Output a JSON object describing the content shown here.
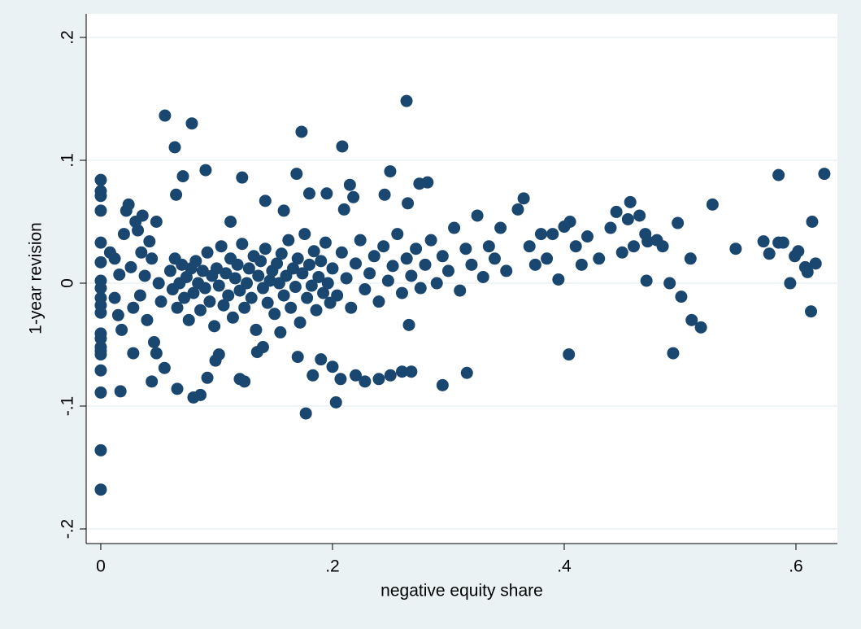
{
  "chart_data": {
    "type": "scatter",
    "x_label": "negative equity share",
    "y_label": "1-year revision",
    "xlim": [
      -0.0126,
      0.6358
    ],
    "ylim": [
      -0.2119,
      0.2192
    ],
    "xticks": [
      0,
      {
        "value": 0.2,
        "label": ".2"
      },
      {
        "value": 0.4,
        "label": ".4"
      },
      {
        "value": 0.6,
        "label": ".6"
      }
    ],
    "yticks": [
      {
        "value": -0.2,
        "label": "-.2"
      },
      {
        "value": -0.1,
        "label": "-.1"
      },
      0,
      {
        "value": 0.1,
        "label": ".1"
      },
      {
        "value": 0.2,
        "label": ".2"
      }
    ],
    "grid": true,
    "color": "#1a476f",
    "x": [
      0,
      0,
      0,
      0,
      0,
      0,
      0,
      0,
      0,
      0,
      0,
      0,
      0,
      0,
      0,
      0,
      0,
      0,
      0,
      0,
      0.008,
      0.012,
      0.015,
      0.016,
      0.018,
      0.02,
      0.022,
      0.024,
      0.026,
      0.028,
      0.03,
      0.032,
      0.034,
      0.036,
      0.038,
      0.04,
      0.042,
      0.044,
      0.046,
      0.048,
      0.05,
      0.052,
      0.017,
      0.044,
      0.048,
      0.055,
      0.066,
      0.028,
      0.012,
      0.035,
      0.06,
      0.062,
      0.064,
      0.066,
      0.068,
      0.07,
      0.072,
      0.074,
      0.076,
      0.078,
      0.08,
      0.082,
      0.084,
      0.086,
      0.088,
      0.09,
      0.092,
      0.094,
      0.096,
      0.098,
      0.1,
      0.102,
      0.104,
      0.106,
      0.108,
      0.11,
      0.112,
      0.114,
      0.116,
      0.118,
      0.12,
      0.122,
      0.124,
      0.126,
      0.128,
      0.13,
      0.132,
      0.134,
      0.136,
      0.138,
      0.14,
      0.142,
      0.144,
      0.146,
      0.148,
      0.15,
      0.152,
      0.154,
      0.156,
      0.158,
      0.16,
      0.162,
      0.164,
      0.166,
      0.168,
      0.17,
      0.172,
      0.174,
      0.176,
      0.178,
      0.18,
      0.182,
      0.184,
      0.186,
      0.188,
      0.19,
      0.192,
      0.194,
      0.196,
      0.198,
      0.2,
      0.204,
      0.208,
      0.212,
      0.216,
      0.22,
      0.224,
      0.228,
      0.232,
      0.236,
      0.24,
      0.244,
      0.248,
      0.252,
      0.256,
      0.26,
      0.264,
      0.268,
      0.272,
      0.276,
      0.28,
      0.285,
      0.29,
      0.295,
      0.3,
      0.305,
      0.31,
      0.315,
      0.32,
      0.325,
      0.33,
      0.335,
      0.34,
      0.345,
      0.35,
      0.0554,
      0.0786,
      0.0639,
      0.2639,
      0.1733,
      0.2084,
      0.0905,
      0.0709,
      0.122,
      0.169,
      0.2498,
      0.065,
      0.112,
      0.142,
      0.158,
      0.18,
      0.195,
      0.215,
      0.218,
      0.245,
      0.275,
      0.282,
      0.265,
      0.21,
      0.177,
      0.203,
      0.266,
      0.295,
      0.316,
      0.17,
      0.183,
      0.19,
      0.2,
      0.207,
      0.22,
      0.228,
      0.24,
      0.25,
      0.26,
      0.268,
      0.092,
      0.099,
      0.102,
      0.08,
      0.086,
      0.12,
      0.124,
      0.135,
      0.14,
      0.155,
      0.36,
      0.365,
      0.37,
      0.375,
      0.38,
      0.385,
      0.39,
      0.395,
      0.4,
      0.404,
      0.405,
      0.41,
      0.415,
      0.42,
      0.43,
      0.44,
      0.445,
      0.45,
      0.455,
      0.457,
      0.46,
      0.465,
      0.47,
      0.471,
      0.472,
      0.48,
      0.485,
      0.491,
      0.494,
      0.498,
      0.501,
      0.509,
      0.51,
      0.518,
      0.528,
      0.548,
      0.572,
      0.577,
      0.585,
      0.585,
      0.589,
      0.595,
      0.599,
      0.602,
      0.608,
      0.61,
      0.614,
      0.617,
      0.613,
      0.6245
    ],
    "values": [
      0.084,
      0.075,
      0.071,
      0.059,
      0.033,
      0.017,
      0.002,
      -0.004,
      -0.012,
      -0.018,
      -0.024,
      -0.041,
      -0.045,
      -0.052,
      -0.055,
      -0.058,
      -0.071,
      -0.089,
      -0.136,
      -0.168,
      0.025,
      0.02,
      -0.026,
      0.007,
      -0.038,
      0.04,
      0.059,
      0.064,
      0.013,
      -0.02,
      0.05,
      0.043,
      -0.01,
      0.055,
      0.006,
      -0.03,
      0.034,
      0.02,
      -0.048,
      0.05,
      0,
      -0.015,
      -0.088,
      -0.08,
      -0.057,
      -0.069,
      -0.086,
      -0.057,
      -0.012,
      0.025,
      0.01,
      -0.005,
      0.02,
      -0.02,
      0,
      0.015,
      -0.012,
      0.005,
      -0.03,
      0.012,
      -0.008,
      0.018,
      0,
      -0.022,
      0.01,
      -0.004,
      0.025,
      -0.015,
      0.006,
      -0.035,
      0.012,
      -0.002,
      0.03,
      -0.018,
      0.008,
      -0.01,
      0.02,
      -0.028,
      0.004,
      0.015,
      -0.006,
      0.032,
      -0.02,
      0,
      0.012,
      -0.012,
      0.022,
      -0.038,
      0.006,
      0.018,
      -0.004,
      0.028,
      -0.016,
      0.002,
      0.01,
      -0.025,
      0.016,
      0,
      0.024,
      -0.01,
      0.006,
      0.035,
      -0.02,
      0.012,
      -0.003,
      0.02,
      -0.032,
      0.008,
      0.04,
      -0.012,
      0.015,
      -0.002,
      0.026,
      -0.022,
      0.005,
      0.018,
      -0.008,
      0.033,
      0,
      -0.016,
      0.012,
      -0.01,
      0.025,
      0.004,
      -0.02,
      0.016,
      0.035,
      -0.005,
      0.008,
      0.022,
      -0.015,
      0.03,
      0.002,
      0.014,
      0.04,
      -0.008,
      0.02,
      0.006,
      0.028,
      -0.004,
      0.015,
      0.035,
      0,
      0.022,
      0.01,
      0.045,
      -0.006,
      0.028,
      0.015,
      0.055,
      0.005,
      0.03,
      0.02,
      0.045,
      0.01,
      0.1364,
      0.13,
      0.1106,
      0.1483,
      0.1232,
      0.1113,
      0.092,
      0.087,
      0.086,
      0.089,
      0.091,
      0.072,
      0.05,
      0.067,
      0.059,
      0.073,
      0.073,
      0.08,
      0.07,
      0.072,
      0.081,
      0.082,
      0.065,
      0.06,
      -0.106,
      -0.097,
      -0.034,
      -0.083,
      -0.073,
      -0.06,
      -0.075,
      -0.062,
      -0.068,
      -0.078,
      -0.075,
      -0.08,
      -0.078,
      -0.075,
      -0.072,
      -0.072,
      -0.077,
      -0.063,
      -0.058,
      -0.093,
      -0.091,
      -0.078,
      -0.08,
      -0.056,
      -0.052,
      -0.04,
      0.06,
      0.069,
      0.03,
      0.015,
      0.04,
      0.02,
      0.04,
      0.003,
      0.046,
      -0.058,
      0.05,
      0.03,
      0.015,
      0.038,
      0.02,
      0.045,
      0.058,
      0.025,
      0.052,
      0.066,
      0.03,
      0.055,
      0.04,
      0.002,
      0.034,
      0.035,
      0.03,
      0,
      -0.057,
      0.049,
      -0.011,
      0.02,
      -0.03,
      -0.036,
      0.064,
      0.028,
      0.034,
      0.024,
      0.088,
      0.033,
      0.033,
      0,
      0.022,
      0.026,
      0.013,
      0.009,
      0.05,
      0.016,
      -0.023,
      0.089
    ]
  }
}
